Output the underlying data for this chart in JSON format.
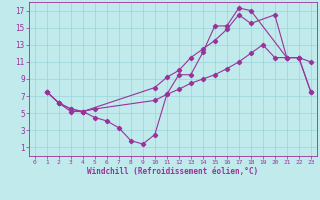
{
  "background_color": "#c0eaec",
  "grid_color": "#9dd4d8",
  "line_color": "#993399",
  "xlabel": "Windchill (Refroidissement éolien,°C)",
  "xlim": [
    -0.5,
    23.5
  ],
  "ylim": [
    0,
    18
  ],
  "xticks": [
    0,
    1,
    2,
    3,
    4,
    5,
    6,
    7,
    8,
    9,
    10,
    11,
    12,
    13,
    14,
    15,
    16,
    17,
    18,
    19,
    20,
    21,
    22,
    23
  ],
  "yticks": [
    1,
    3,
    5,
    7,
    9,
    11,
    13,
    15,
    17
  ],
  "line1_x": [
    1,
    2,
    3,
    4,
    5,
    6,
    7,
    8,
    9,
    10,
    11,
    12,
    13,
    14,
    15,
    16,
    17,
    18,
    21,
    22,
    23
  ],
  "line1_y": [
    7.5,
    6.2,
    5.5,
    5.2,
    4.5,
    4.1,
    3.3,
    1.8,
    1.4,
    2.5,
    7.2,
    9.5,
    9.5,
    12.1,
    15.2,
    15.2,
    17.3,
    17.0,
    11.5,
    11.5,
    11.0
  ],
  "line2_x": [
    1,
    2,
    3,
    4,
    10,
    11,
    12,
    13,
    14,
    15,
    16,
    17,
    18,
    20,
    21,
    22,
    23
  ],
  "line2_y": [
    7.5,
    6.2,
    5.2,
    5.2,
    8.0,
    9.2,
    10.0,
    11.5,
    12.5,
    13.5,
    14.8,
    16.5,
    15.5,
    16.5,
    11.5,
    11.5,
    7.5
  ],
  "line3_x": [
    1,
    2,
    3,
    4,
    5,
    10,
    11,
    12,
    13,
    14,
    15,
    16,
    17,
    18,
    19,
    20,
    21,
    22,
    23
  ],
  "line3_y": [
    7.5,
    6.2,
    5.5,
    5.2,
    5.5,
    6.5,
    7.2,
    7.8,
    8.5,
    9.0,
    9.5,
    10.2,
    11.0,
    12.0,
    13.0,
    11.5,
    11.5,
    11.5,
    7.5
  ]
}
